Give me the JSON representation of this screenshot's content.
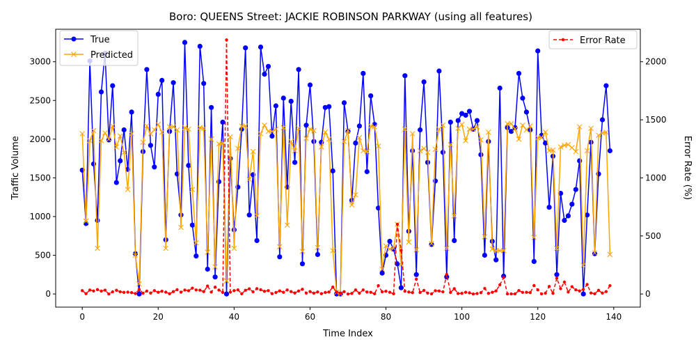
{
  "chart_data": {
    "type": "line",
    "title": "Boro: QUEENS Street: JACKIE ROBINSON PARKWAY (using all features)",
    "xlabel": "Time Index",
    "ylabel": "Traffic Volume",
    "y2label": "Error Rate (%)",
    "xlim": [
      -7,
      147
    ],
    "ylim": [
      -170,
      3420
    ],
    "y2lim": [
      -113,
      2280
    ],
    "xticks": [
      0,
      20,
      40,
      60,
      80,
      100,
      120,
      140
    ],
    "yticks": [
      0,
      500,
      1000,
      1500,
      2000,
      2500,
      3000
    ],
    "y2ticks": [
      0,
      500,
      1000,
      1500,
      2000
    ],
    "grid": false,
    "legend_left": "upper-left",
    "legend_right": "upper-right",
    "series": [
      {
        "name": "True",
        "axis": "left",
        "color": "#0000ff",
        "marker": "circle",
        "values": [
          1600,
          910,
          3010,
          1680,
          950,
          2610,
          3110,
          1990,
          2690,
          1440,
          1720,
          2120,
          1610,
          2350,
          520,
          0,
          1840,
          2900,
          1920,
          1640,
          2580,
          2760,
          700,
          2100,
          2730,
          1550,
          1020,
          3250,
          1660,
          890,
          490,
          3200,
          2720,
          320,
          2410,
          220,
          1450,
          2220,
          0,
          1750,
          830,
          1380,
          2130,
          3180,
          1020,
          1540,
          690,
          3190,
          2840,
          2940,
          2040,
          2430,
          480,
          2530,
          1380,
          2490,
          1700,
          2900,
          390,
          2180,
          2700,
          1970,
          510,
          1960,
          2410,
          2420,
          1590,
          0,
          0,
          2470,
          2100,
          1210,
          1950,
          2170,
          2850,
          1580,
          2560,
          2190,
          1110,
          270,
          500,
          680,
          580,
          390,
          80,
          2820,
          810,
          1850,
          250,
          2120,
          2740,
          1700,
          640,
          1460,
          2880,
          1830,
          220,
          2220,
          690,
          2240,
          2330,
          2310,
          2360,
          2130,
          2240,
          1800,
          500,
          1970,
          680,
          440,
          2660,
          230,
          2150,
          2100,
          2150,
          2850,
          2530,
          2350,
          2120,
          420,
          3140,
          2050,
          1950,
          1120,
          1780,
          250,
          1300,
          950,
          1010,
          1160,
          1350,
          1720,
          0,
          1020,
          1960,
          520,
          1550,
          2250,
          2690,
          1850
        ]
      },
      {
        "name": "Predicted",
        "axis": "left",
        "color": "#ffa500",
        "marker": "x",
        "values": [
          2070,
          940,
          1980,
          2110,
          590,
          1980,
          2080,
          2000,
          2170,
          1900,
          2040,
          1830,
          1350,
          2070,
          500,
          130,
          1960,
          2170,
          2070,
          2120,
          2190,
          2090,
          590,
          2160,
          2160,
          2120,
          860,
          2150,
          2130,
          1350,
          660,
          2150,
          2140,
          540,
          2000,
          350,
          1940,
          1950,
          170,
          2030,
          590,
          1880,
          2170,
          2170,
          1480,
          1840,
          1010,
          2070,
          2180,
          2100,
          2100,
          2130,
          610,
          2150,
          890,
          1970,
          1850,
          2140,
          550,
          2010,
          2130,
          2110,
          600,
          1900,
          2090,
          2000,
          560,
          20,
          0,
          1970,
          2110,
          1150,
          1280,
          2020,
          1850,
          1840,
          2170,
          2160,
          1910,
          320,
          620,
          580,
          590,
          900,
          380,
          2130,
          670,
          2070,
          570,
          1850,
          1880,
          1830,
          650,
          1870,
          2130,
          2180,
          590,
          1930,
          1010,
          2140,
          2190,
          1980,
          2130,
          2130,
          2160,
          1990,
          740,
          2090,
          580,
          560,
          560,
          560,
          2200,
          2200,
          2130,
          2000,
          2180,
          2120,
          2170,
          730,
          2020,
          2020,
          2090,
          1850,
          1860,
          590,
          1900,
          1920,
          1930,
          1890,
          1840,
          2160,
          370,
          1850,
          2140,
          530,
          2050,
          2080,
          2090,
          510
        ]
      },
      {
        "name": "Error Rate",
        "axis": "right",
        "color": "#ff0000",
        "marker": "dot",
        "dash": "dashed",
        "values": [
          29,
          3,
          34,
          26,
          38,
          25,
          33,
          0,
          19,
          32,
          19,
          14,
          16,
          12,
          4,
          40,
          7,
          25,
          8,
          29,
          15,
          24,
          16,
          2,
          21,
          37,
          16,
          34,
          28,
          51,
          35,
          33,
          21,
          69,
          17,
          59,
          34,
          14,
          2188,
          16,
          29,
          36,
          2,
          32,
          45,
          19,
          46,
          37,
          23,
          29,
          3,
          13,
          27,
          15,
          35,
          21,
          9,
          26,
          41,
          8,
          21,
          7,
          18,
          3,
          13,
          17,
          60,
          18,
          7,
          20,
          0,
          5,
          35,
          7,
          35,
          17,
          15,
          2,
          72,
          19,
          24,
          15,
          2,
          601,
          375,
          24,
          17,
          12,
          128,
          13,
          31,
          8,
          1,
          28,
          26,
          19,
          168,
          13,
          46,
          4,
          6,
          15,
          10,
          0,
          4,
          11,
          48,
          6,
          15,
          27,
          79,
          142,
          1,
          1,
          1,
          30,
          14,
          15,
          12,
          73,
          36,
          1,
          7,
          65,
          6,
          136,
          46,
          103,
          17,
          63,
          36,
          26,
          40,
          82,
          9,
          2,
          32,
          8,
          21,
          72
        ]
      }
    ]
  }
}
